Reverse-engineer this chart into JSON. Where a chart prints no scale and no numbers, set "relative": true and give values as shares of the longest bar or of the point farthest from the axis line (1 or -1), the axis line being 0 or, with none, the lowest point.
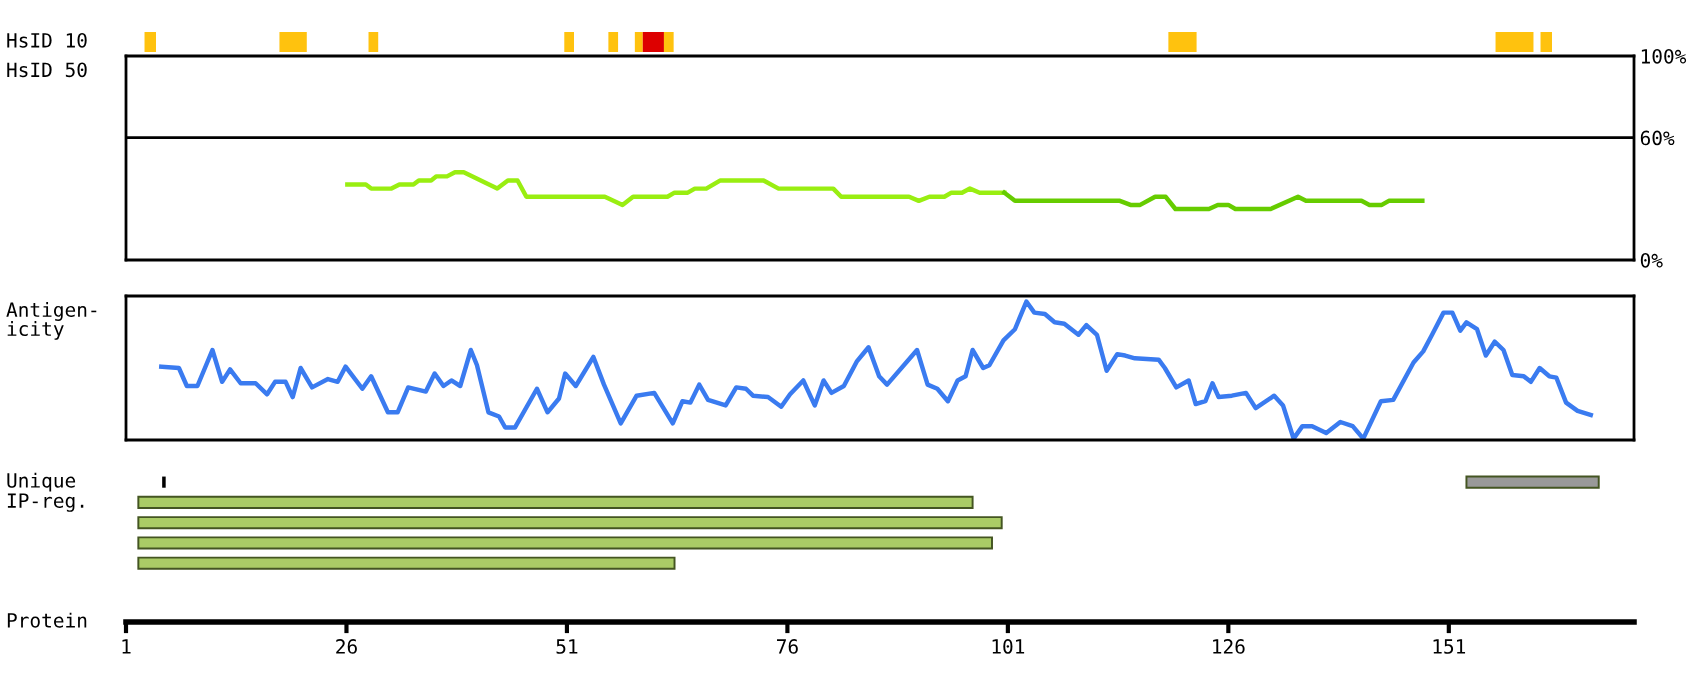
{
  "chart_data": [
    {
      "type": "bar",
      "orientation": "horizontal",
      "categories": [
        "HsID 10"
      ],
      "xlim": [
        1,
        172
      ],
      "tick_labels": false,
      "series": [
        {
          "color": "#ffc20e",
          "values": [
            1.3
          ],
          "base": [
            3.1
          ]
        },
        {
          "color": "#ffc20e",
          "values": [
            3.1
          ],
          "base": [
            18.4
          ]
        },
        {
          "color": "#ffc20e",
          "values": [
            1.1
          ],
          "base": [
            28.5
          ]
        },
        {
          "color": "#ffc20e",
          "values": [
            1.1
          ],
          "base": [
            50.7
          ]
        },
        {
          "color": "#ffc20e",
          "values": [
            1.1
          ],
          "base": [
            55.7
          ]
        },
        {
          "color": "#ffc20e",
          "values": [
            0.9
          ],
          "base": [
            58.7
          ]
        },
        {
          "color": "#dd0000",
          "values": [
            2.4
          ],
          "base": [
            59.6
          ]
        },
        {
          "color": "#ffc20e",
          "values": [
            1.1
          ],
          "base": [
            62
          ]
        },
        {
          "color": "#ffc20e",
          "values": [
            3.2
          ],
          "base": [
            119.2
          ]
        },
        {
          "color": "#ffc20e",
          "values": [
            4.3
          ],
          "base": [
            156.3
          ]
        },
        {
          "color": "#ffc20e",
          "values": [
            1.3
          ],
          "base": [
            161.4
          ]
        }
      ]
    },
    {
      "type": "line",
      "ylabel": "HsID 50",
      "xlim": [
        1,
        172
      ],
      "ylim": [
        0,
        100
      ],
      "tick_labels": "y",
      "yticks": [
        {
          "value": 0,
          "label": "0%"
        },
        {
          "value": 60,
          "label": "60%"
        },
        {
          "value": 100,
          "label": "100%"
        }
      ],
      "ref_lines": [
        {
          "axis": "y",
          "value": 60,
          "color": "#000000"
        }
      ],
      "series": [
        {
          "color": "#99ee11",
          "x": [
            26.1,
            28.2,
            28.8,
            31.1,
            32,
            33.6,
            34.2,
            35.6,
            36.2,
            37.4,
            38.3,
            39.3,
            43.1,
            44.3,
            45.4,
            46.4,
            55.3,
            57.3,
            58.5,
            62.4,
            63.2,
            64.7,
            65.5,
            66.8,
            68.4,
            73.3,
            75,
            81.2,
            82.1,
            89.8,
            90.9,
            92.1,
            93.8,
            94.6,
            95.8,
            96.7,
            97.8,
            100.6
          ],
          "values": [
            37,
            37,
            35,
            35,
            37,
            37,
            39,
            39,
            41,
            41,
            43,
            43,
            35,
            39,
            39,
            31,
            31,
            27,
            31,
            31,
            33,
            33,
            35,
            35,
            39,
            39,
            35,
            35,
            31,
            31,
            29,
            31,
            31,
            33,
            33,
            35,
            33,
            33
          ]
        },
        {
          "color": "#66cc00",
          "x": [
            100.6,
            101.8,
            113.7,
            114.9,
            116,
            117.7,
            118.9,
            120,
            123.8,
            124.8,
            126,
            126.8,
            130.8,
            133.9,
            134.8,
            141.1,
            142,
            143.4,
            144.2,
            148
          ],
          "values": [
            33,
            29,
            29,
            27,
            27,
            31,
            31,
            25,
            25,
            27,
            27,
            25,
            25,
            31,
            29,
            29,
            27,
            27,
            29,
            29
          ]
        }
      ]
    },
    {
      "type": "line",
      "ylabel": "Antigen-\nicity",
      "xlim": [
        1,
        172
      ],
      "relative": true,
      "tick_labels": false,
      "series": [
        {
          "color": "#3a7bf0",
          "x": [
            5,
            7,
            7.9,
            9.1,
            10.8,
            11.9,
            12.8,
            14,
            15.7,
            17,
            17.9,
            19.1,
            19.9,
            20.8,
            22.1,
            23.9,
            25,
            25.9,
            27.8,
            28.8,
            30.7,
            31.8,
            33,
            35,
            36,
            37,
            37.9,
            38.9,
            40.1,
            40.8,
            42.1,
            43.3,
            44,
            45.1,
            47.6,
            48.8,
            50.1,
            50.8,
            52,
            54,
            55.2,
            57.1,
            58.9,
            60.9,
            63,
            64.1,
            65,
            66,
            67,
            69,
            70.2,
            71.3,
            72.1,
            73.8,
            75.3,
            76.3,
            77.8,
            79.1,
            80.1,
            81,
            82.4,
            83.9,
            85.2,
            86.4,
            87.3,
            90.7,
            91.9,
            93,
            94.2,
            95.3,
            96.2,
            97,
            98.2,
            98.9,
            100.5,
            101.8,
            103.1,
            104,
            105.2,
            106.3,
            107.4,
            109,
            109.9,
            111.1,
            112.2,
            113.4,
            114.3,
            115.4,
            118.1,
            118.8,
            120.1,
            121.5,
            122.3,
            123.4,
            124.2,
            124.9,
            126.4,
            128,
            129.1,
            131.2,
            132.2,
            133.4,
            134.4,
            135.5,
            137.1,
            138.7,
            140.1,
            141.3,
            143.3,
            144.7,
            147,
            148.1,
            149.1,
            150.4,
            151.4,
            152.3,
            153,
            154.2,
            155.2,
            156.2,
            157.2,
            158.2,
            159.5,
            160.3,
            161.3,
            162.4,
            163.2,
            164.3,
            165.6,
            167.1
          ],
          "values": [
            0.53,
            0.52,
            0.39,
            0.39,
            0.65,
            0.42,
            0.51,
            0.41,
            0.41,
            0.33,
            0.42,
            0.42,
            0.31,
            0.52,
            0.38,
            0.44,
            0.42,
            0.53,
            0.37,
            0.46,
            0.2,
            0.2,
            0.38,
            0.35,
            0.48,
            0.39,
            0.43,
            0.39,
            0.65,
            0.54,
            0.2,
            0.17,
            0.09,
            0.09,
            0.37,
            0.2,
            0.3,
            0.48,
            0.39,
            0.6,
            0.4,
            0.12,
            0.32,
            0.34,
            0.12,
            0.28,
            0.27,
            0.4,
            0.29,
            0.25,
            0.38,
            0.37,
            0.32,
            0.31,
            0.24,
            0.33,
            0.43,
            0.25,
            0.43,
            0.34,
            0.39,
            0.57,
            0.67,
            0.46,
            0.4,
            0.65,
            0.4,
            0.37,
            0.28,
            0.43,
            0.46,
            0.65,
            0.52,
            0.54,
            0.72,
            0.8,
            1,
            0.92,
            0.91,
            0.85,
            0.84,
            0.76,
            0.83,
            0.76,
            0.5,
            0.62,
            0.61,
            0.59,
            0.58,
            0.52,
            0.38,
            0.43,
            0.26,
            0.28,
            0.41,
            0.31,
            0.32,
            0.34,
            0.23,
            0.32,
            0.25,
            0.01,
            0.1,
            0.1,
            0.05,
            0.13,
            0.1,
            0.01,
            0.28,
            0.29,
            0.56,
            0.64,
            0.76,
            0.92,
            0.92,
            0.79,
            0.85,
            0.8,
            0.61,
            0.71,
            0.65,
            0.47,
            0.46,
            0.42,
            0.52,
            0.46,
            0.45,
            0.27,
            0.21,
            0.18
          ]
        }
      ]
    },
    {
      "type": "bar",
      "orientation": "horizontal",
      "categories": [
        "Unique",
        "IP-reg.",
        null,
        null,
        null
      ],
      "xlabel": "Protein",
      "xlim": [
        1,
        172
      ],
      "xticks": [
        1,
        26,
        51,
        76,
        101,
        126,
        151
      ],
      "series": [
        {
          "color": "#000000",
          "values": [
            0.4,
            null,
            null,
            null,
            null
          ],
          "base": [
            5.1,
            null,
            null,
            null,
            null
          ]
        },
        {
          "color": "#999999",
          "values": [
            15,
            null,
            null,
            null,
            null
          ],
          "base": [
            153,
            null,
            null,
            null,
            null
          ]
        },
        {
          "color": "#aacc66",
          "values": [
            null,
            94.6,
            97.9,
            96.8,
            60.8
          ],
          "base": [
            null,
            2.4,
            2.4,
            2.4,
            2.4
          ]
        }
      ]
    }
  ]
}
